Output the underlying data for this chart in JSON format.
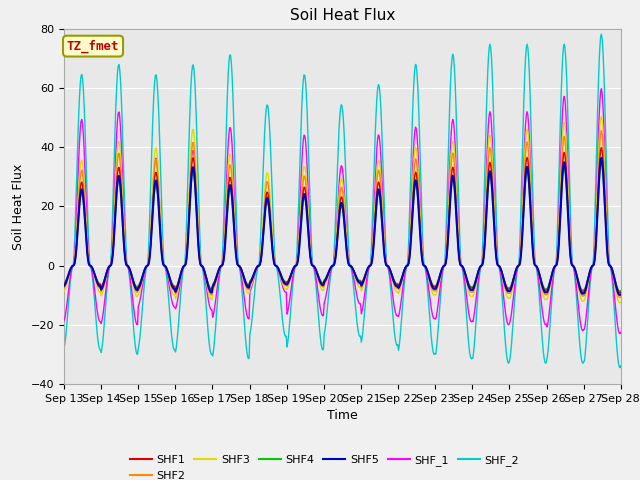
{
  "title": "Soil Heat Flux",
  "xlabel": "Time",
  "ylabel": "Soil Heat Flux",
  "ylim": [
    -40,
    80
  ],
  "yticks": [
    -40,
    -20,
    0,
    20,
    40,
    60,
    80
  ],
  "x_tick_labels": [
    "Sep 13",
    "Sep 14",
    "Sep 15",
    "Sep 16",
    "Sep 17",
    "Sep 18",
    "Sep 19",
    "Sep 20",
    "Sep 21",
    "Sep 22",
    "Sep 23",
    "Sep 24",
    "Sep 25",
    "Sep 26",
    "Sep 27",
    "Sep 28"
  ],
  "series_colors": {
    "SHF1": "#dd0000",
    "SHF2": "#ff8800",
    "SHF3": "#dddd00",
    "SHF4": "#00cc00",
    "SHF5": "#0000cc",
    "SHF_1": "#ff00ff",
    "SHF_2": "#00cccc"
  },
  "annotation_text": "TZ_fmet",
  "annotation_color": "#cc0000",
  "annotation_bg": "#ffffcc",
  "annotation_border": "#999900",
  "plot_bg_color": "#e8e8e8",
  "fig_bg_color": "#f0f0f0",
  "grid_color": "#ffffff",
  "n_days": 15,
  "pts_per_day": 48,
  "title_fontsize": 11,
  "axis_label_fontsize": 9,
  "tick_fontsize": 8,
  "legend_fontsize": 8
}
